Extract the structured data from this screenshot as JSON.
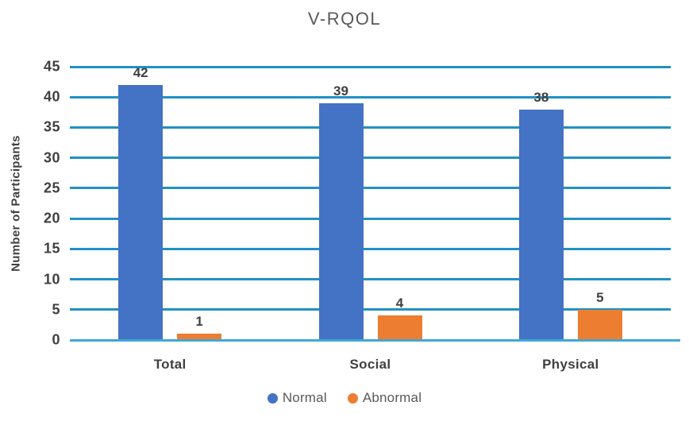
{
  "chart_data": {
    "type": "bar",
    "title": "V-RQOL",
    "categories": [
      "Total",
      "Social",
      "Physical"
    ],
    "series": [
      {
        "name": "Normal",
        "color": "#4472C4",
        "values": [
          42,
          39,
          38
        ]
      },
      {
        "name": "Abnormal",
        "color": "#ED7D31",
        "values": [
          1,
          4,
          5
        ]
      }
    ],
    "ylabel": "Number of Participants",
    "xlabel": "",
    "ylim": [
      0,
      45
    ],
    "yticks": [
      0,
      5,
      10,
      15,
      20,
      25,
      30,
      35,
      40,
      45
    ],
    "grid": true,
    "value_labels": true,
    "legend_position": "bottom",
    "colors": {
      "gridline": "#2191C4",
      "axis_line": "#41A7D9",
      "title_text": "#595959",
      "tick_text": "#404040",
      "value_text": "#404040",
      "category_text": "#404040",
      "legend_text": "#595959",
      "background": "#FFFFFF"
    }
  }
}
